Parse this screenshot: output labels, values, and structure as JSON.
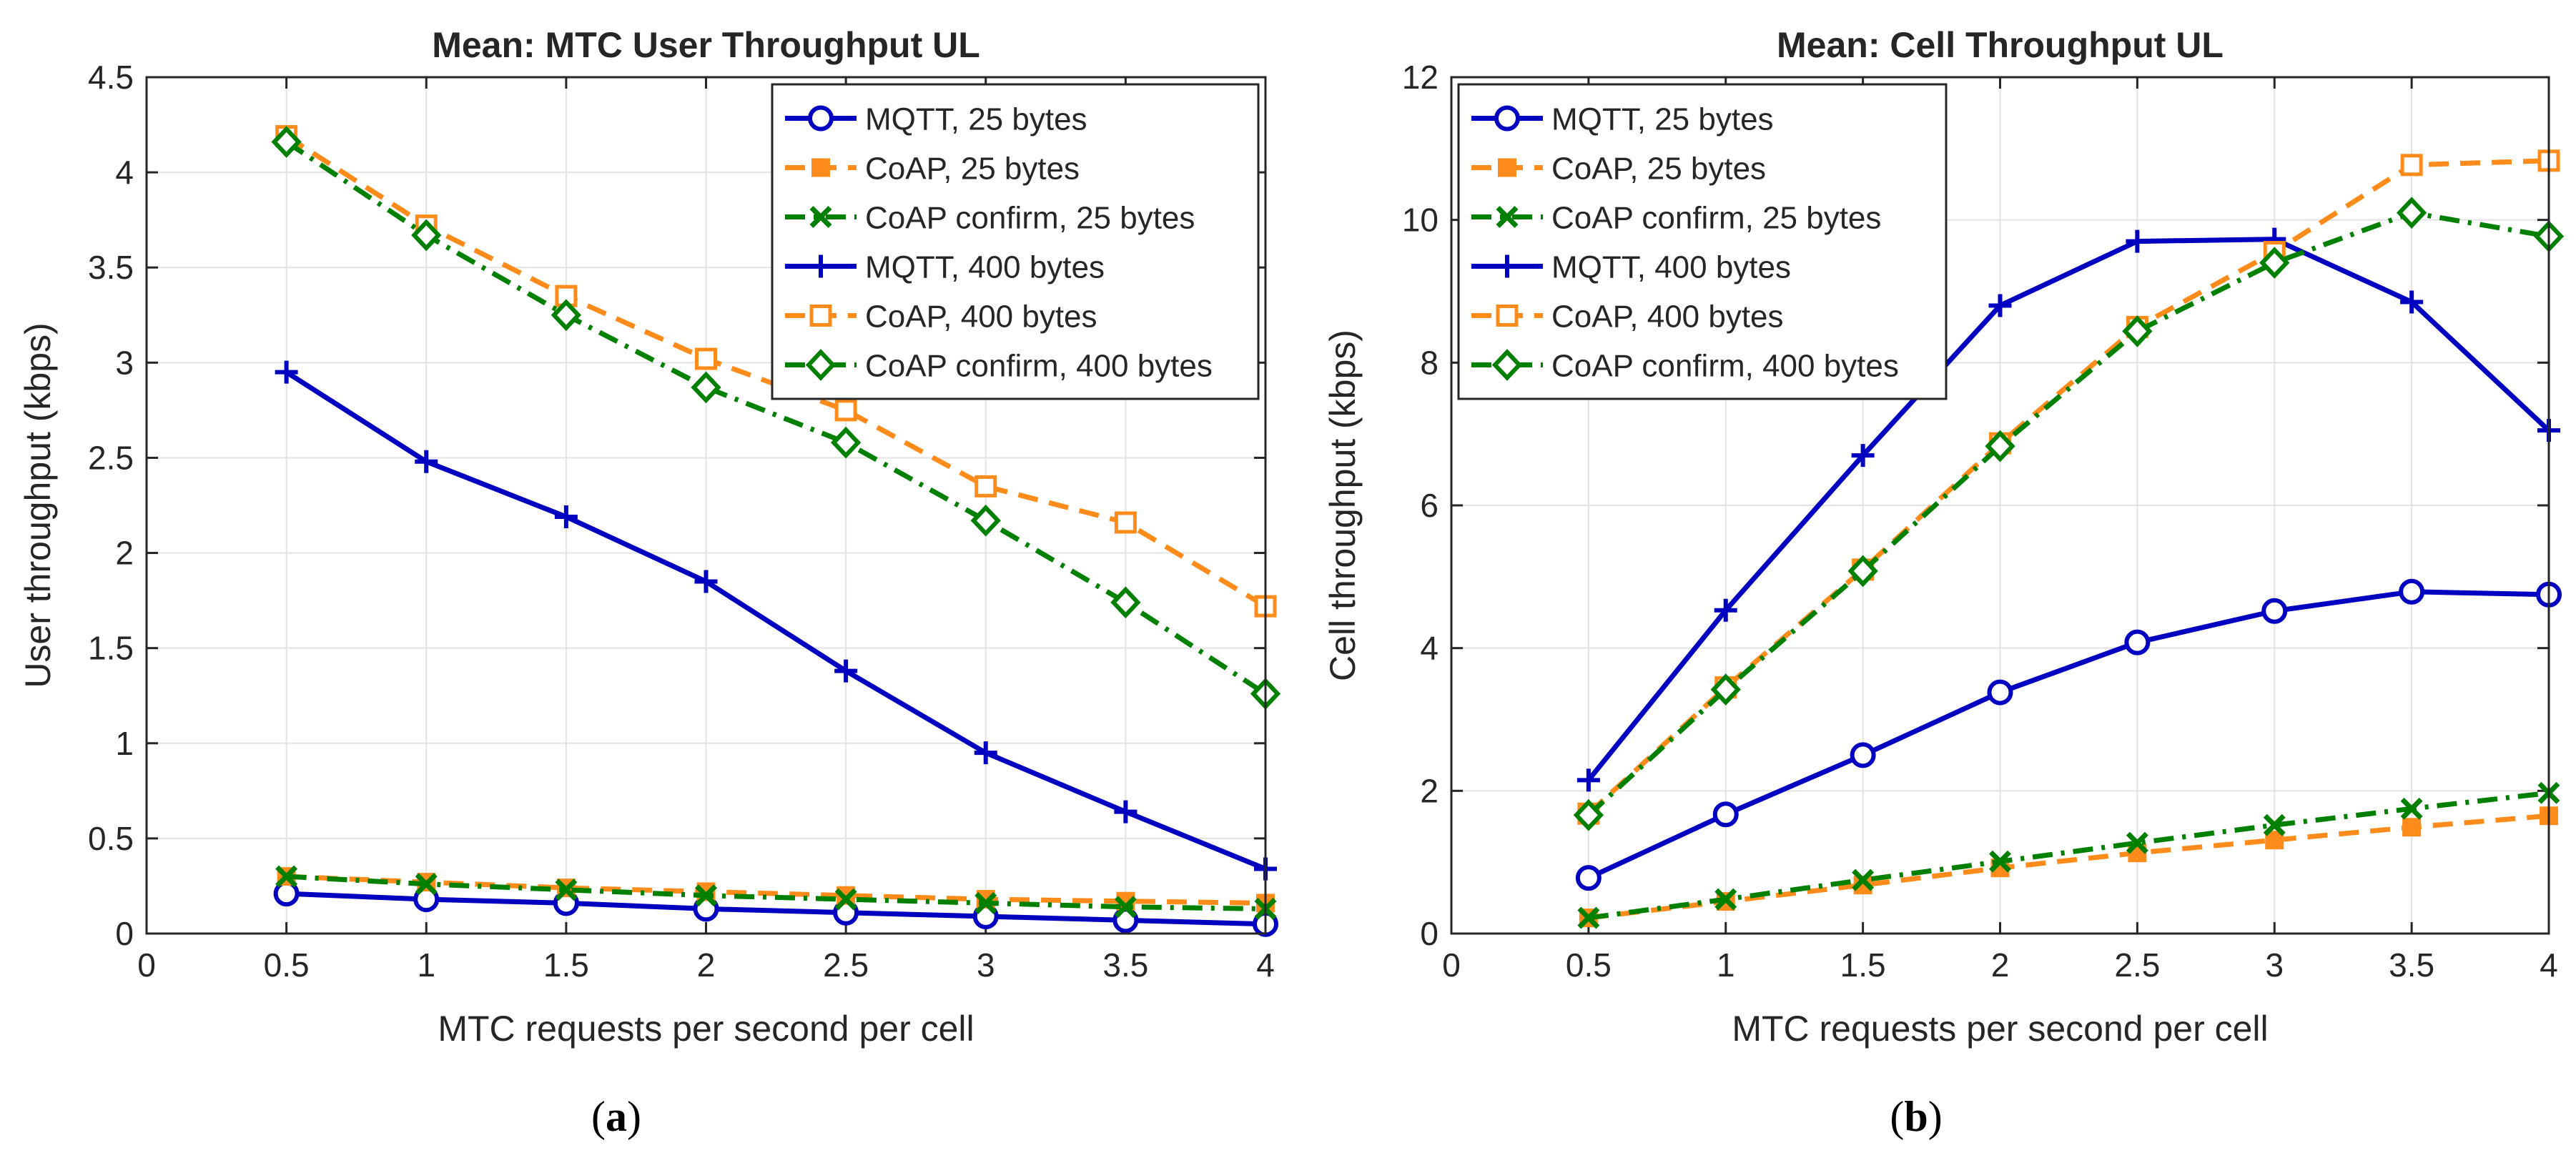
{
  "figure": {
    "panels": [
      {
        "open": "(",
        "letter": "a",
        "close": ")"
      },
      {
        "open": "(",
        "letter": "b",
        "close": ")"
      }
    ]
  },
  "chart_data": [
    {
      "type": "line",
      "title": "Mean: MTC User Throughput UL",
      "xlabel": "MTC requests per second per cell",
      "ylabel": "User throughput (kbps)",
      "xlim": [
        0,
        4
      ],
      "ylim": [
        0,
        4.5
      ],
      "xticks": [
        0,
        0.5,
        1,
        1.5,
        2,
        2.5,
        3,
        3.5,
        4
      ],
      "xtick_labels": [
        "0",
        "0.5",
        "1",
        "1.5",
        "2",
        "2.5",
        "3",
        "3.5",
        "4"
      ],
      "yticks": [
        0,
        0.5,
        1,
        1.5,
        2,
        2.5,
        3,
        3.5,
        4,
        4.5
      ],
      "ytick_labels": [
        "0",
        "0.5",
        "1",
        "1.5",
        "2",
        "2.5",
        "3",
        "3.5",
        "4",
        "4.5"
      ],
      "grid": true,
      "legend_position": "top-right",
      "x": [
        0.5,
        1,
        1.5,
        2,
        2.5,
        3,
        3.5,
        4
      ],
      "series": [
        {
          "name": "MQTT, 25 bytes",
          "color": "#0000c0",
          "line": "solid",
          "marker": "circle",
          "values": [
            0.21,
            0.18,
            0.16,
            0.13,
            0.11,
            0.09,
            0.07,
            0.05
          ]
        },
        {
          "name": "CoAP, 25 bytes",
          "color": "#ff8c1a",
          "line": "dashed",
          "marker": "filled-square",
          "values": [
            0.3,
            0.27,
            0.24,
            0.22,
            0.2,
            0.18,
            0.17,
            0.16
          ]
        },
        {
          "name": "CoAP confirm, 25 bytes",
          "color": "#008000",
          "line": "dashdot",
          "marker": "x",
          "values": [
            0.3,
            0.26,
            0.23,
            0.2,
            0.18,
            0.16,
            0.14,
            0.13
          ]
        },
        {
          "name": "MQTT, 400 bytes",
          "color": "#0000c0",
          "line": "solid",
          "marker": "plus",
          "values": [
            2.95,
            2.48,
            2.19,
            1.85,
            1.38,
            0.95,
            0.64,
            0.34
          ]
        },
        {
          "name": "CoAP, 400 bytes",
          "color": "#ff8c1a",
          "line": "dashed",
          "marker": "square",
          "values": [
            4.19,
            3.72,
            3.35,
            3.02,
            2.75,
            2.35,
            2.16,
            1.72
          ]
        },
        {
          "name": "CoAP confirm, 400 bytes",
          "color": "#008000",
          "line": "dashdot",
          "marker": "diamond",
          "values": [
            4.16,
            3.67,
            3.25,
            2.87,
            2.58,
            2.17,
            1.74,
            1.26
          ]
        }
      ]
    },
    {
      "type": "line",
      "title": "Mean: Cell Throughput UL",
      "xlabel": "MTC requests per second per cell",
      "ylabel": "Cell throughput (kbps)",
      "xlim": [
        0,
        4
      ],
      "ylim": [
        0,
        12
      ],
      "xticks": [
        0,
        0.5,
        1,
        1.5,
        2,
        2.5,
        3,
        3.5,
        4
      ],
      "xtick_labels": [
        "0",
        "0.5",
        "1",
        "1.5",
        "2",
        "2.5",
        "3",
        "3.5",
        "4"
      ],
      "yticks": [
        0,
        2,
        4,
        6,
        8,
        10,
        12
      ],
      "ytick_labels": [
        "0",
        "2",
        "4",
        "6",
        "8",
        "10",
        "12"
      ],
      "grid": true,
      "legend_position": "top-left",
      "x": [
        0.5,
        1,
        1.5,
        2,
        2.5,
        3,
        3.5,
        4
      ],
      "series": [
        {
          "name": "MQTT, 25 bytes",
          "color": "#0000c0",
          "line": "solid",
          "marker": "circle",
          "values": [
            0.78,
            1.67,
            2.5,
            3.38,
            4.08,
            4.52,
            4.79,
            4.75
          ]
        },
        {
          "name": "CoAP, 25 bytes",
          "color": "#ff8c1a",
          "line": "dashed",
          "marker": "filled-square",
          "values": [
            0.22,
            0.45,
            0.68,
            0.92,
            1.13,
            1.31,
            1.49,
            1.65
          ]
        },
        {
          "name": "CoAP confirm, 25 bytes",
          "color": "#008000",
          "line": "dashdot",
          "marker": "x",
          "values": [
            0.22,
            0.48,
            0.75,
            1.01,
            1.27,
            1.52,
            1.75,
            1.97
          ]
        },
        {
          "name": "MQTT, 400 bytes",
          "color": "#0000c0",
          "line": "solid",
          "marker": "plus",
          "values": [
            2.15,
            4.53,
            6.7,
            8.8,
            9.7,
            9.73,
            8.85,
            7.05
          ]
        },
        {
          "name": "CoAP, 400 bytes",
          "color": "#ff8c1a",
          "line": "dashed",
          "marker": "square",
          "values": [
            1.68,
            3.45,
            5.1,
            6.87,
            8.5,
            9.55,
            10.77,
            10.83
          ]
        },
        {
          "name": "CoAP confirm, 400 bytes",
          "color": "#008000",
          "line": "dashdot",
          "marker": "diamond",
          "values": [
            1.66,
            3.42,
            5.08,
            6.83,
            8.44,
            9.4,
            10.1,
            9.77
          ]
        }
      ]
    }
  ]
}
